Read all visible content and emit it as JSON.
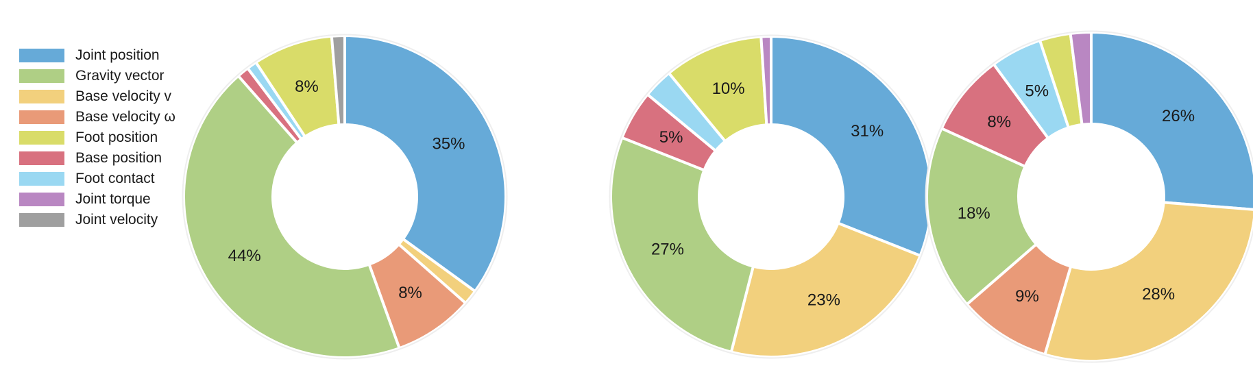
{
  "legend": [
    {
      "label": "Joint position",
      "color": "#66aad8"
    },
    {
      "label": "Gravity vector",
      "color": "#afcf85"
    },
    {
      "label": "Base velocity v",
      "color": "#f2d07d"
    },
    {
      "label": "Base velocity ω",
      "color": "#e99a78"
    },
    {
      "label": "Foot position",
      "color": "#d9dc69"
    },
    {
      "label": "Base position",
      "color": "#d8717f"
    },
    {
      "label": "Foot contact",
      "color": "#9ad8f2"
    },
    {
      "label": "Joint torque",
      "color": "#b987c2"
    },
    {
      "label": "Joint velocity",
      "color": "#9f9f9f"
    }
  ],
  "chart_data": [
    {
      "type": "pie",
      "donut": true,
      "slices": [
        {
          "name": "Joint position",
          "value": 35,
          "label": "35%"
        },
        {
          "name": "Base velocity v",
          "value": 1.5,
          "label": ""
        },
        {
          "name": "Base velocity ω",
          "value": 8,
          "label": "8%"
        },
        {
          "name": "Gravity vector",
          "value": 44,
          "label": "44%"
        },
        {
          "name": "Base position",
          "value": 1.2,
          "label": ""
        },
        {
          "name": "Foot contact",
          "value": 1,
          "label": ""
        },
        {
          "name": "Foot position",
          "value": 8,
          "label": "8%"
        },
        {
          "name": "Joint velocity",
          "value": 1.3,
          "label": ""
        }
      ]
    },
    {
      "type": "pie",
      "donut": true,
      "slices": [
        {
          "name": "Joint position",
          "value": 31,
          "label": "31%"
        },
        {
          "name": "Base velocity v",
          "value": 23,
          "label": "23%"
        },
        {
          "name": "Gravity vector",
          "value": 27,
          "label": "27%"
        },
        {
          "name": "Base position",
          "value": 5,
          "label": "5%"
        },
        {
          "name": "Foot contact",
          "value": 3,
          "label": ""
        },
        {
          "name": "Foot position",
          "value": 10,
          "label": "10%"
        },
        {
          "name": "Joint torque",
          "value": 1,
          "label": ""
        }
      ]
    },
    {
      "type": "pie",
      "donut": true,
      "slices": [
        {
          "name": "Joint position",
          "value": 26,
          "label": "26%"
        },
        {
          "name": "Base velocity v",
          "value": 28,
          "label": "28%"
        },
        {
          "name": "Base velocity ω",
          "value": 9,
          "label": "9%"
        },
        {
          "name": "Gravity vector",
          "value": 18,
          "label": "18%"
        },
        {
          "name": "Base position",
          "value": 8,
          "label": "8%"
        },
        {
          "name": "Foot contact",
          "value": 5,
          "label": "5%"
        },
        {
          "name": "Foot position",
          "value": 3,
          "label": ""
        },
        {
          "name": "Joint torque",
          "value": 2,
          "label": ""
        }
      ]
    }
  ]
}
